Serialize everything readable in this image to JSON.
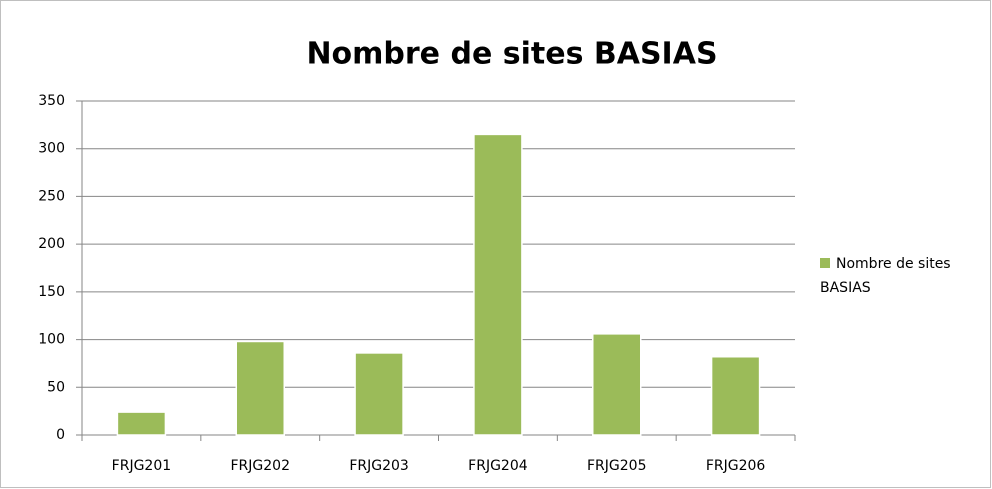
{
  "chart_data": {
    "type": "bar",
    "title": "Nombre de sites BASIAS",
    "categories": [
      "FRJG201",
      "FRJG202",
      "FRJG203",
      "FRJG204",
      "FRJG205",
      "FRJG206"
    ],
    "series": [
      {
        "name": "Nombre de sites BASIAS",
        "color": "#9bbb59",
        "values": [
          24,
          98,
          86,
          315,
          106,
          82
        ]
      }
    ],
    "ylim": [
      0,
      350
    ],
    "yticks": [
      0,
      50,
      100,
      150,
      200,
      250,
      300,
      350
    ],
    "grid": true,
    "legend": "right"
  }
}
